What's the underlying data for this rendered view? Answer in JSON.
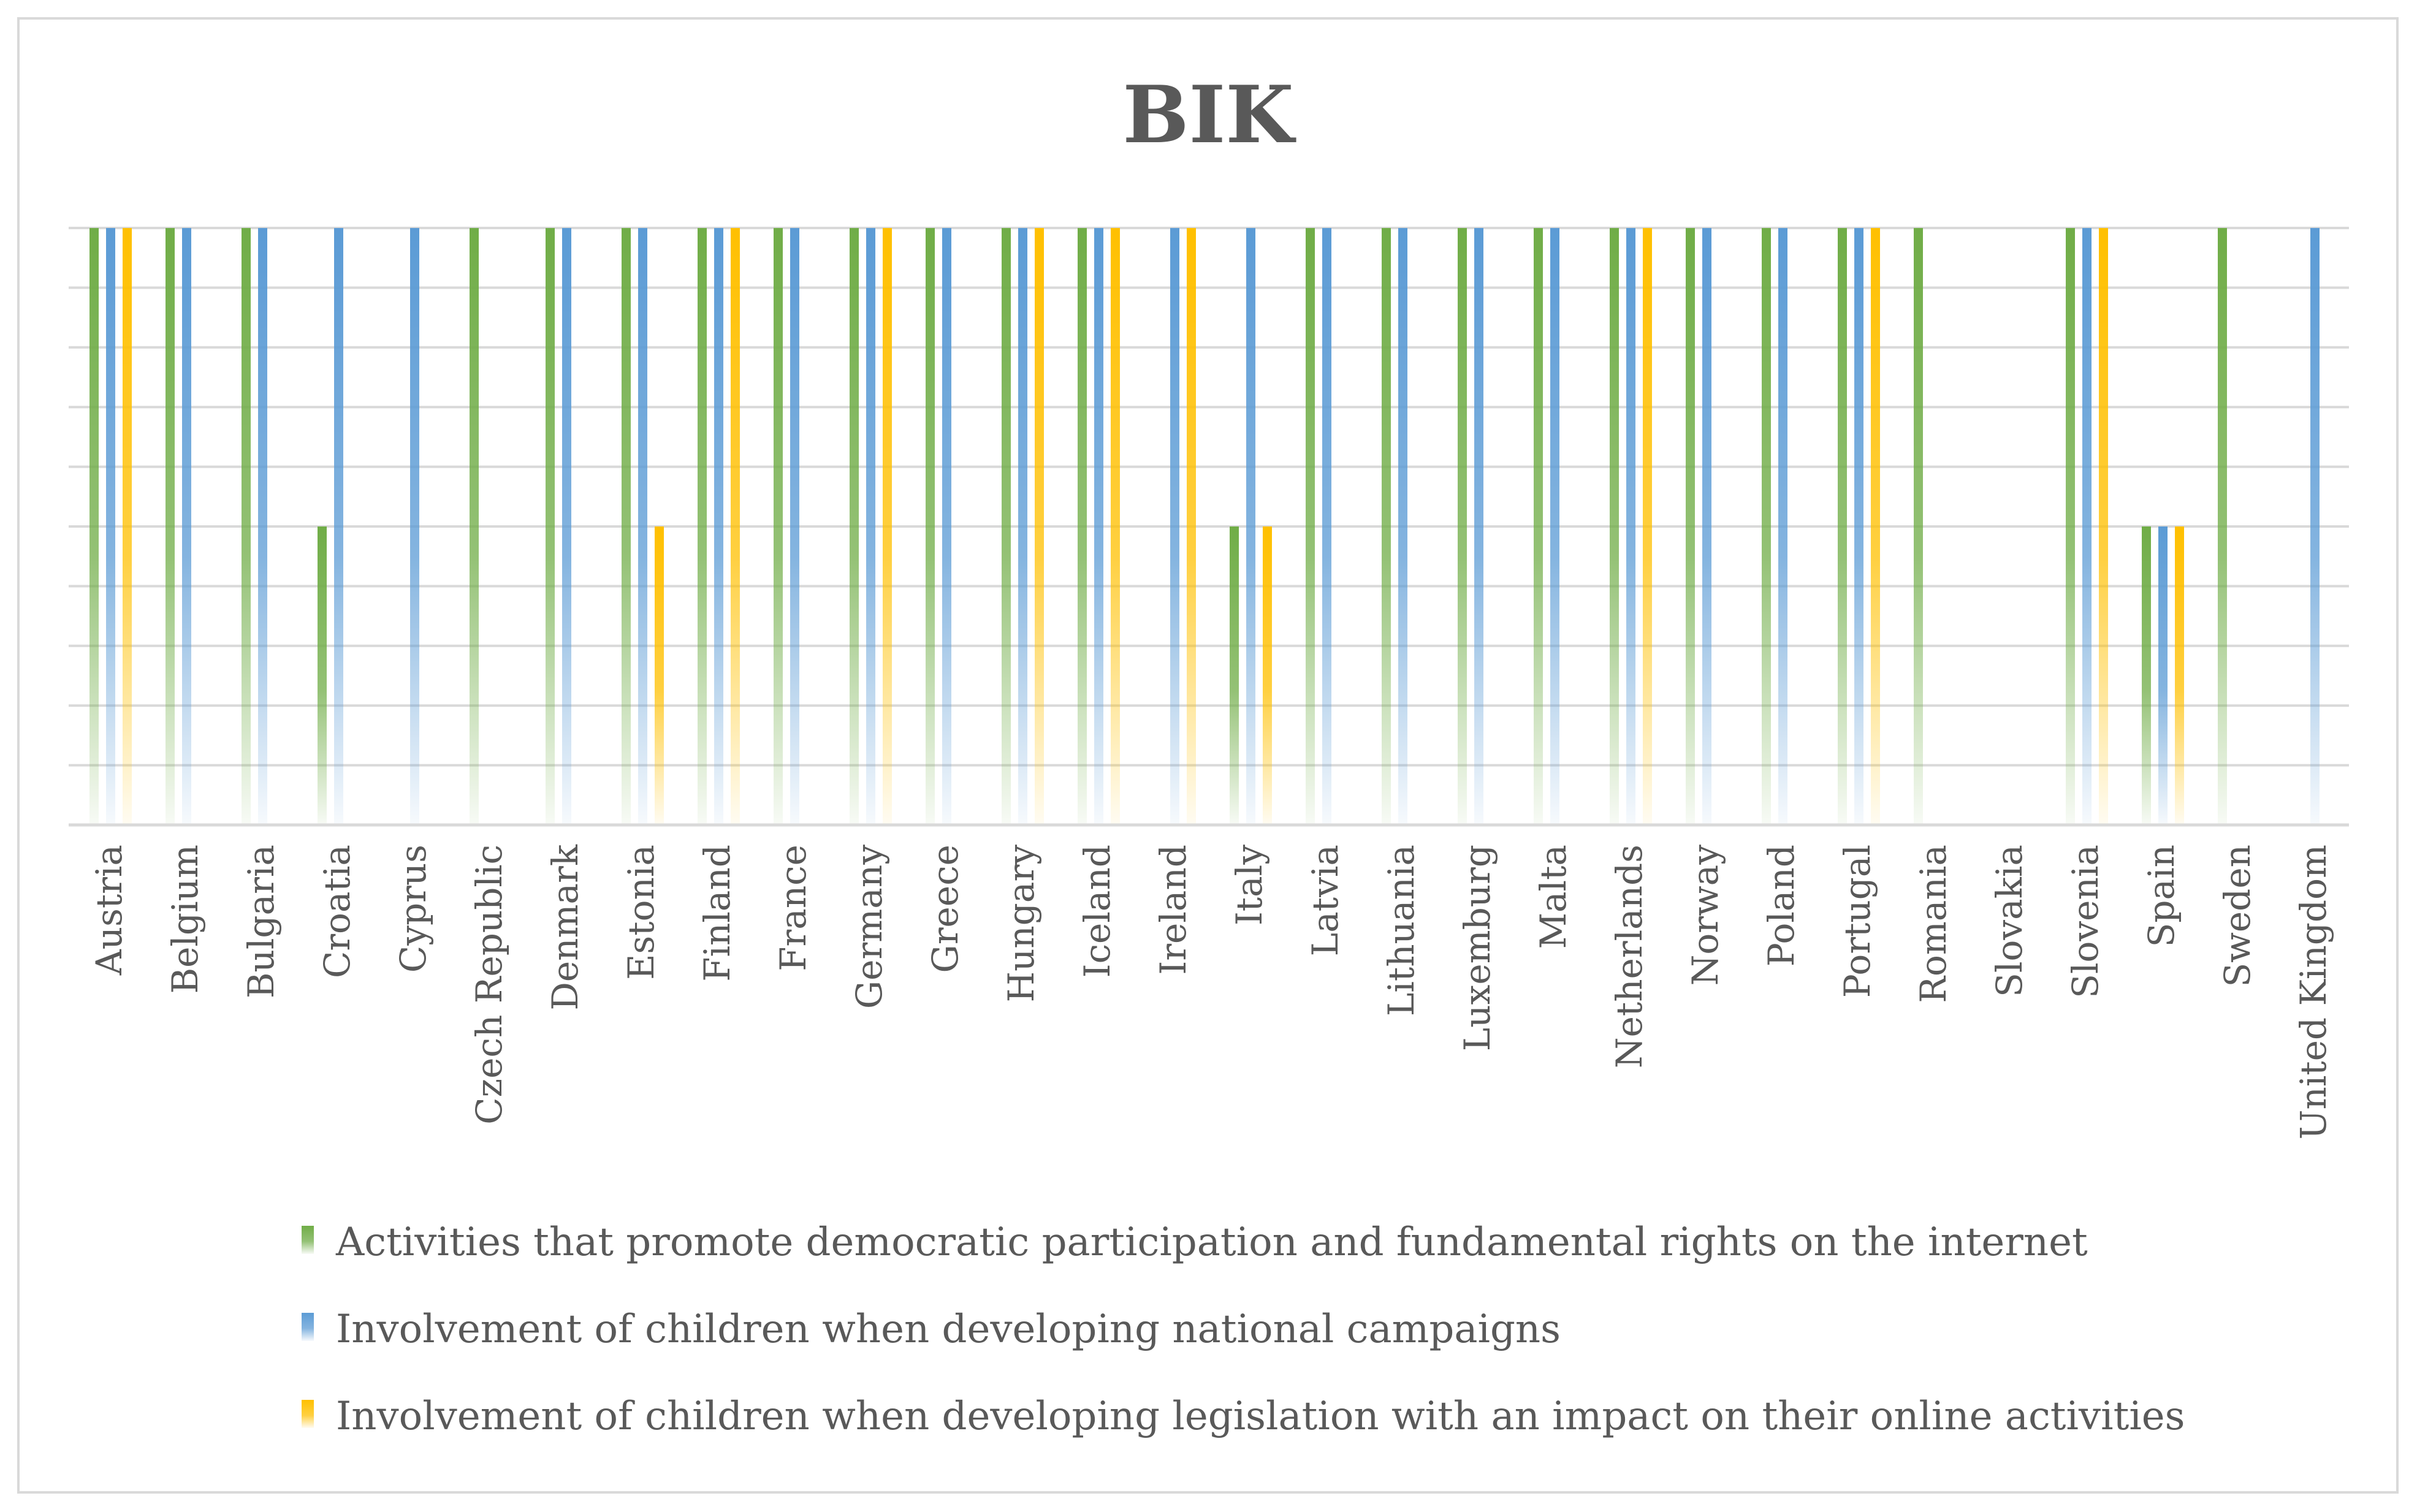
{
  "chart_data": {
    "type": "bar",
    "title": "BIK",
    "xlabel": "",
    "ylabel": "",
    "ylim": [
      0,
      10
    ],
    "grid": true,
    "legend_position": "bottom",
    "categories": [
      "Austria",
      "Belgium",
      "Bulgaria",
      "Croatia",
      "Cyprus",
      "Czech Republic",
      "Denmark",
      "Estonia",
      "Finland",
      "France",
      "Germany",
      "Greece",
      "Hungary",
      "Iceland",
      "Ireland",
      "Italy",
      "Latvia",
      "Lithuania",
      "Luxemburg",
      "Malta",
      "Netherlands",
      "Norway",
      "Poland",
      "Portugal",
      "Romania",
      "Slovakia",
      "Slovenia",
      "Spain",
      "Sweden",
      "United Kingdom"
    ],
    "series": [
      {
        "name": "Activities that promote democratic participation and fundamental rights on the internet",
        "color": "#70ad47",
        "values": [
          10,
          10,
          10,
          5,
          0,
          10,
          10,
          10,
          10,
          10,
          10,
          10,
          10,
          10,
          0,
          5,
          10,
          10,
          10,
          10,
          10,
          10,
          10,
          10,
          10,
          0,
          10,
          5,
          10,
          0
        ]
      },
      {
        "name": "Involvement of children when developing national campaigns",
        "color": "#5b9bd5",
        "values": [
          10,
          10,
          10,
          10,
          10,
          0,
          10,
          10,
          10,
          10,
          10,
          10,
          10,
          10,
          10,
          10,
          10,
          10,
          10,
          10,
          10,
          10,
          10,
          10,
          0,
          0,
          10,
          5,
          0,
          10
        ]
      },
      {
        "name": "Involvement of children when developing legislation with an impact on their online activities",
        "color": "#ffc000",
        "values": [
          10,
          0,
          0,
          0,
          0,
          0,
          0,
          5,
          10,
          0,
          10,
          0,
          10,
          10,
          10,
          5,
          0,
          0,
          0,
          0,
          10,
          0,
          0,
          10,
          0,
          0,
          10,
          5,
          0,
          0
        ]
      }
    ]
  }
}
